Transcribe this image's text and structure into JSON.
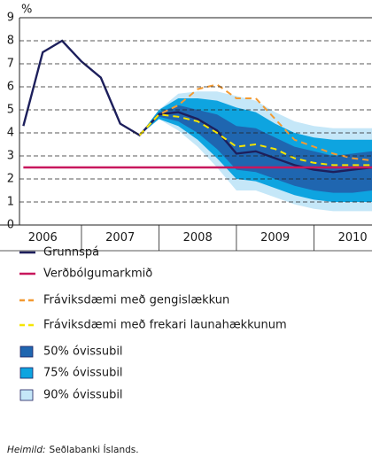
{
  "chart_data": {
    "type": "line",
    "y_unit": "%",
    "x": [
      2006.25,
      2006.5,
      2006.75,
      2007.0,
      2007.25,
      2007.5,
      2007.75,
      2008.0,
      2008.25,
      2008.5,
      2008.75,
      2009.0,
      2009.25,
      2009.5,
      2009.75,
      2010.0,
      2010.25,
      2010.5,
      2010.75
    ],
    "xlim": [
      2006.2,
      2010.75
    ],
    "xticks": [
      {
        "value": 2006.5,
        "label": "2006"
      },
      {
        "value": 2007.5,
        "label": "2007"
      },
      {
        "value": 2008.5,
        "label": "2008"
      },
      {
        "value": 2009.5,
        "label": "2009"
      },
      {
        "value": 2010.5,
        "label": "2010"
      }
    ],
    "ylim": [
      0,
      9
    ],
    "yticks": [
      0,
      1,
      2,
      3,
      4,
      5,
      6,
      7,
      8,
      9
    ],
    "grid": true,
    "series": [
      {
        "name": "Grunnspá",
        "type": "line",
        "color": "#1d1f5c",
        "values": [
          4.3,
          7.5,
          8.0,
          7.1,
          6.4,
          4.4,
          3.9,
          4.8,
          4.9,
          4.6,
          4.1,
          3.1,
          3.2,
          2.9,
          2.6,
          2.4,
          2.3,
          2.4,
          2.5
        ]
      },
      {
        "name": "Verðbólgumarkmið",
        "type": "line",
        "color": "#c8175d",
        "values": [
          2.5,
          2.5,
          2.5,
          2.5,
          2.5,
          2.5,
          2.5,
          2.5,
          2.5,
          2.5,
          2.5,
          2.5,
          2.5,
          2.5,
          2.5,
          2.5,
          2.5,
          2.5,
          2.5
        ]
      },
      {
        "name": "Fráviksdæmi með gengislækkun",
        "type": "dashed",
        "color": "#f39a32",
        "values": [
          null,
          null,
          null,
          null,
          null,
          null,
          3.9,
          4.8,
          5.2,
          5.9,
          6.1,
          5.5,
          5.5,
          4.6,
          3.7,
          3.4,
          3.1,
          2.9,
          2.8
        ]
      },
      {
        "name": "Fráviksdæmi með frekari launahækkunum",
        "type": "dashed",
        "color": "#f5e500",
        "values": [
          null,
          null,
          null,
          null,
          null,
          null,
          3.9,
          4.8,
          4.7,
          4.5,
          4.0,
          3.4,
          3.5,
          3.3,
          2.9,
          2.7,
          2.6,
          2.6,
          2.6
        ]
      },
      {
        "name": "50% óvissubil",
        "type": "band",
        "color": "#1f66b0",
        "upper": [
          null,
          null,
          null,
          null,
          null,
          null,
          3.9,
          4.9,
          5.2,
          5.0,
          4.8,
          4.3,
          4.2,
          3.8,
          3.4,
          3.2,
          3.0,
          3.1,
          3.2
        ],
        "lower": [
          null,
          null,
          null,
          null,
          null,
          null,
          3.9,
          4.7,
          4.5,
          4.0,
          3.3,
          2.4,
          2.3,
          2.0,
          1.7,
          1.5,
          1.4,
          1.4,
          1.5
        ]
      },
      {
        "name": "75% óvissubil",
        "type": "band",
        "color": "#0ea4e0",
        "upper": [
          null,
          null,
          null,
          null,
          null,
          null,
          3.9,
          5.0,
          5.5,
          5.5,
          5.4,
          5.1,
          4.9,
          4.4,
          4.0,
          3.8,
          3.7,
          3.7,
          3.7
        ],
        "lower": [
          null,
          null,
          null,
          null,
          null,
          null,
          3.9,
          4.6,
          4.3,
          3.7,
          2.9,
          2.0,
          1.9,
          1.6,
          1.3,
          1.1,
          1.0,
          1.0,
          1.0
        ]
      },
      {
        "name": "90% óvissubil",
        "type": "band",
        "color": "#c5e7f8",
        "upper": [
          null,
          null,
          null,
          null,
          null,
          null,
          3.9,
          5.0,
          5.7,
          5.8,
          5.8,
          5.6,
          5.4,
          4.9,
          4.5,
          4.3,
          4.2,
          4.2,
          4.2
        ],
        "lower": [
          null,
          null,
          null,
          null,
          null,
          null,
          3.9,
          4.6,
          4.1,
          3.4,
          2.5,
          1.5,
          1.5,
          1.2,
          0.9,
          0.7,
          0.6,
          0.6,
          0.6
        ]
      }
    ],
    "source_label": "Heimild:",
    "source": "Seðlabanki Íslands."
  }
}
